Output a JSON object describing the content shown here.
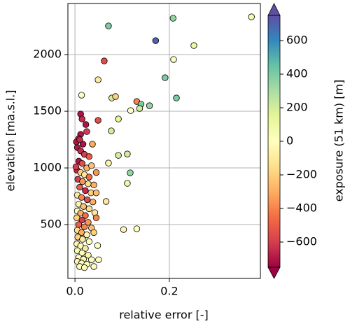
{
  "chart_data": {
    "type": "scatter",
    "x_label": "relative error [-]",
    "y_label": "elevation [ma.s.l.]",
    "colorbar_label": "exposure (51 km) [m]",
    "xlim": [
      -0.015,
      0.393
    ],
    "ylim": [
      25,
      2451
    ],
    "xticks": [
      {
        "value": 0,
        "label": "0.0"
      },
      {
        "value": 0.2,
        "label": "0.2"
      }
    ],
    "yticks": [
      500,
      1000,
      1500,
      2000
    ],
    "clim": [
      -750,
      750
    ],
    "cticks": [
      {
        "value": -600,
        "label": "−600"
      },
      {
        "value": -400,
        "label": "−400"
      },
      {
        "value": -200,
        "label": "−200"
      },
      0,
      200,
      400,
      600
    ],
    "colormap": [
      "#9e0142",
      "#d53e4f",
      "#f46d43",
      "#fdae61",
      "#fee08b",
      "#ffffbf",
      "#e6f598",
      "#abdda4",
      "#66c2a5",
      "#3288bd",
      "#5e4fa2"
    ],
    "colorbar_extend": "both",
    "grid": true,
    "marker_edge_color": "#000000",
    "series": [
      {
        "x": [
          0.374,
          0.071,
          0.208,
          0.171,
          0.252,
          0.062,
          0.209,
          0.049,
          0.191,
          0.215,
          0.014,
          0.078,
          0.086,
          0.131,
          0.14,
          0.158,
          0.137,
          0.118,
          0.092,
          0.049,
          0.023,
          0.077,
          0.025,
          0.012,
          0.015,
          0.012,
          0.008,
          0.037,
          0.017,
          0.092,
          0.111,
          0.117,
          0.111,
          0.071,
          0.066,
          0.103,
          0.131,
          0.042,
          0.048,
          0.005,
          0.012,
          0.02,
          0.008,
          0.015,
          0.025,
          0.035,
          0.004,
          0.012,
          0.02,
          0.03,
          0.006,
          0.016,
          0.028,
          0.04,
          0.01,
          0.022,
          0.034,
          0.005,
          0.014,
          0.026,
          0.038,
          0.008,
          0.018,
          0.03,
          0.005,
          0.012,
          0.022,
          0.004,
          0.015,
          0.028,
          0.008,
          0.02,
          0.035,
          0.005,
          0.014,
          0.025,
          0.006,
          0.016,
          0.03,
          0.004,
          0.012,
          0.022,
          0.005,
          0.015,
          0.028,
          0.008,
          0.018,
          0.035,
          0.005,
          0.014,
          0.025,
          0.01,
          0.02,
          0.04,
          0.003,
          0.01,
          0.03,
          0.002,
          0.045,
          0.045,
          0.045,
          0.04,
          0.05
        ],
        "y": [
          2333,
          2253,
          2321,
          2123,
          2080,
          1944,
          1957,
          1778,
          1796,
          1617,
          1642,
          1617,
          1630,
          1586,
          1562,
          1549,
          1525,
          1506,
          1432,
          1420,
          1383,
          1327,
          1321,
          1475,
          1432,
          1296,
          1259,
          1210,
          1210,
          1111,
          1123,
          957,
          864,
          1043,
          704,
          457,
          463,
          605,
          315,
          1180,
          1150,
          1120,
          1060,
          1040,
          1000,
          1020,
          980,
          960,
          940,
          920,
          900,
          880,
          860,
          850,
          830,
          800,
          780,
          760,
          740,
          720,
          700,
          680,
          660,
          640,
          620,
          600,
          580,
          560,
          540,
          520,
          500,
          480,
          470,
          450,
          430,
          410,
          390,
          370,
          350,
          330,
          310,
          290,
          270,
          250,
          230,
          210,
          195,
          190,
          175,
          160,
          150,
          130,
          120,
          130,
          1230,
          1250,
          1100,
          1010,
          960,
          780,
          560,
          430,
          190
        ],
        "c": [
          50,
          400,
          350,
          700,
          100,
          -550,
          0,
          -100,
          400,
          400,
          0,
          200,
          -200,
          -400,
          400,
          350,
          200,
          0,
          150,
          -550,
          -700,
          200,
          -600,
          -700,
          -650,
          -700,
          -650,
          -300,
          -700,
          200,
          200,
          350,
          100,
          -50,
          -100,
          -50,
          0,
          -100,
          0,
          -700,
          -650,
          -600,
          -700,
          -550,
          -300,
          -250,
          -650,
          -200,
          -100,
          -450,
          -600,
          -350,
          -150,
          -300,
          -500,
          -650,
          -200,
          -100,
          -400,
          -550,
          -300,
          -50,
          -250,
          -150,
          0,
          -300,
          -450,
          -200,
          -600,
          -350,
          -500,
          -400,
          -250,
          -150,
          -300,
          -50,
          -200,
          -100,
          0,
          -50,
          0,
          -100,
          50,
          0,
          -50,
          0,
          50,
          0,
          -50,
          0,
          20,
          0,
          -20,
          0,
          -700,
          -650,
          -500,
          -600,
          -350,
          -250,
          -400,
          -200,
          0
        ]
      }
    ]
  }
}
